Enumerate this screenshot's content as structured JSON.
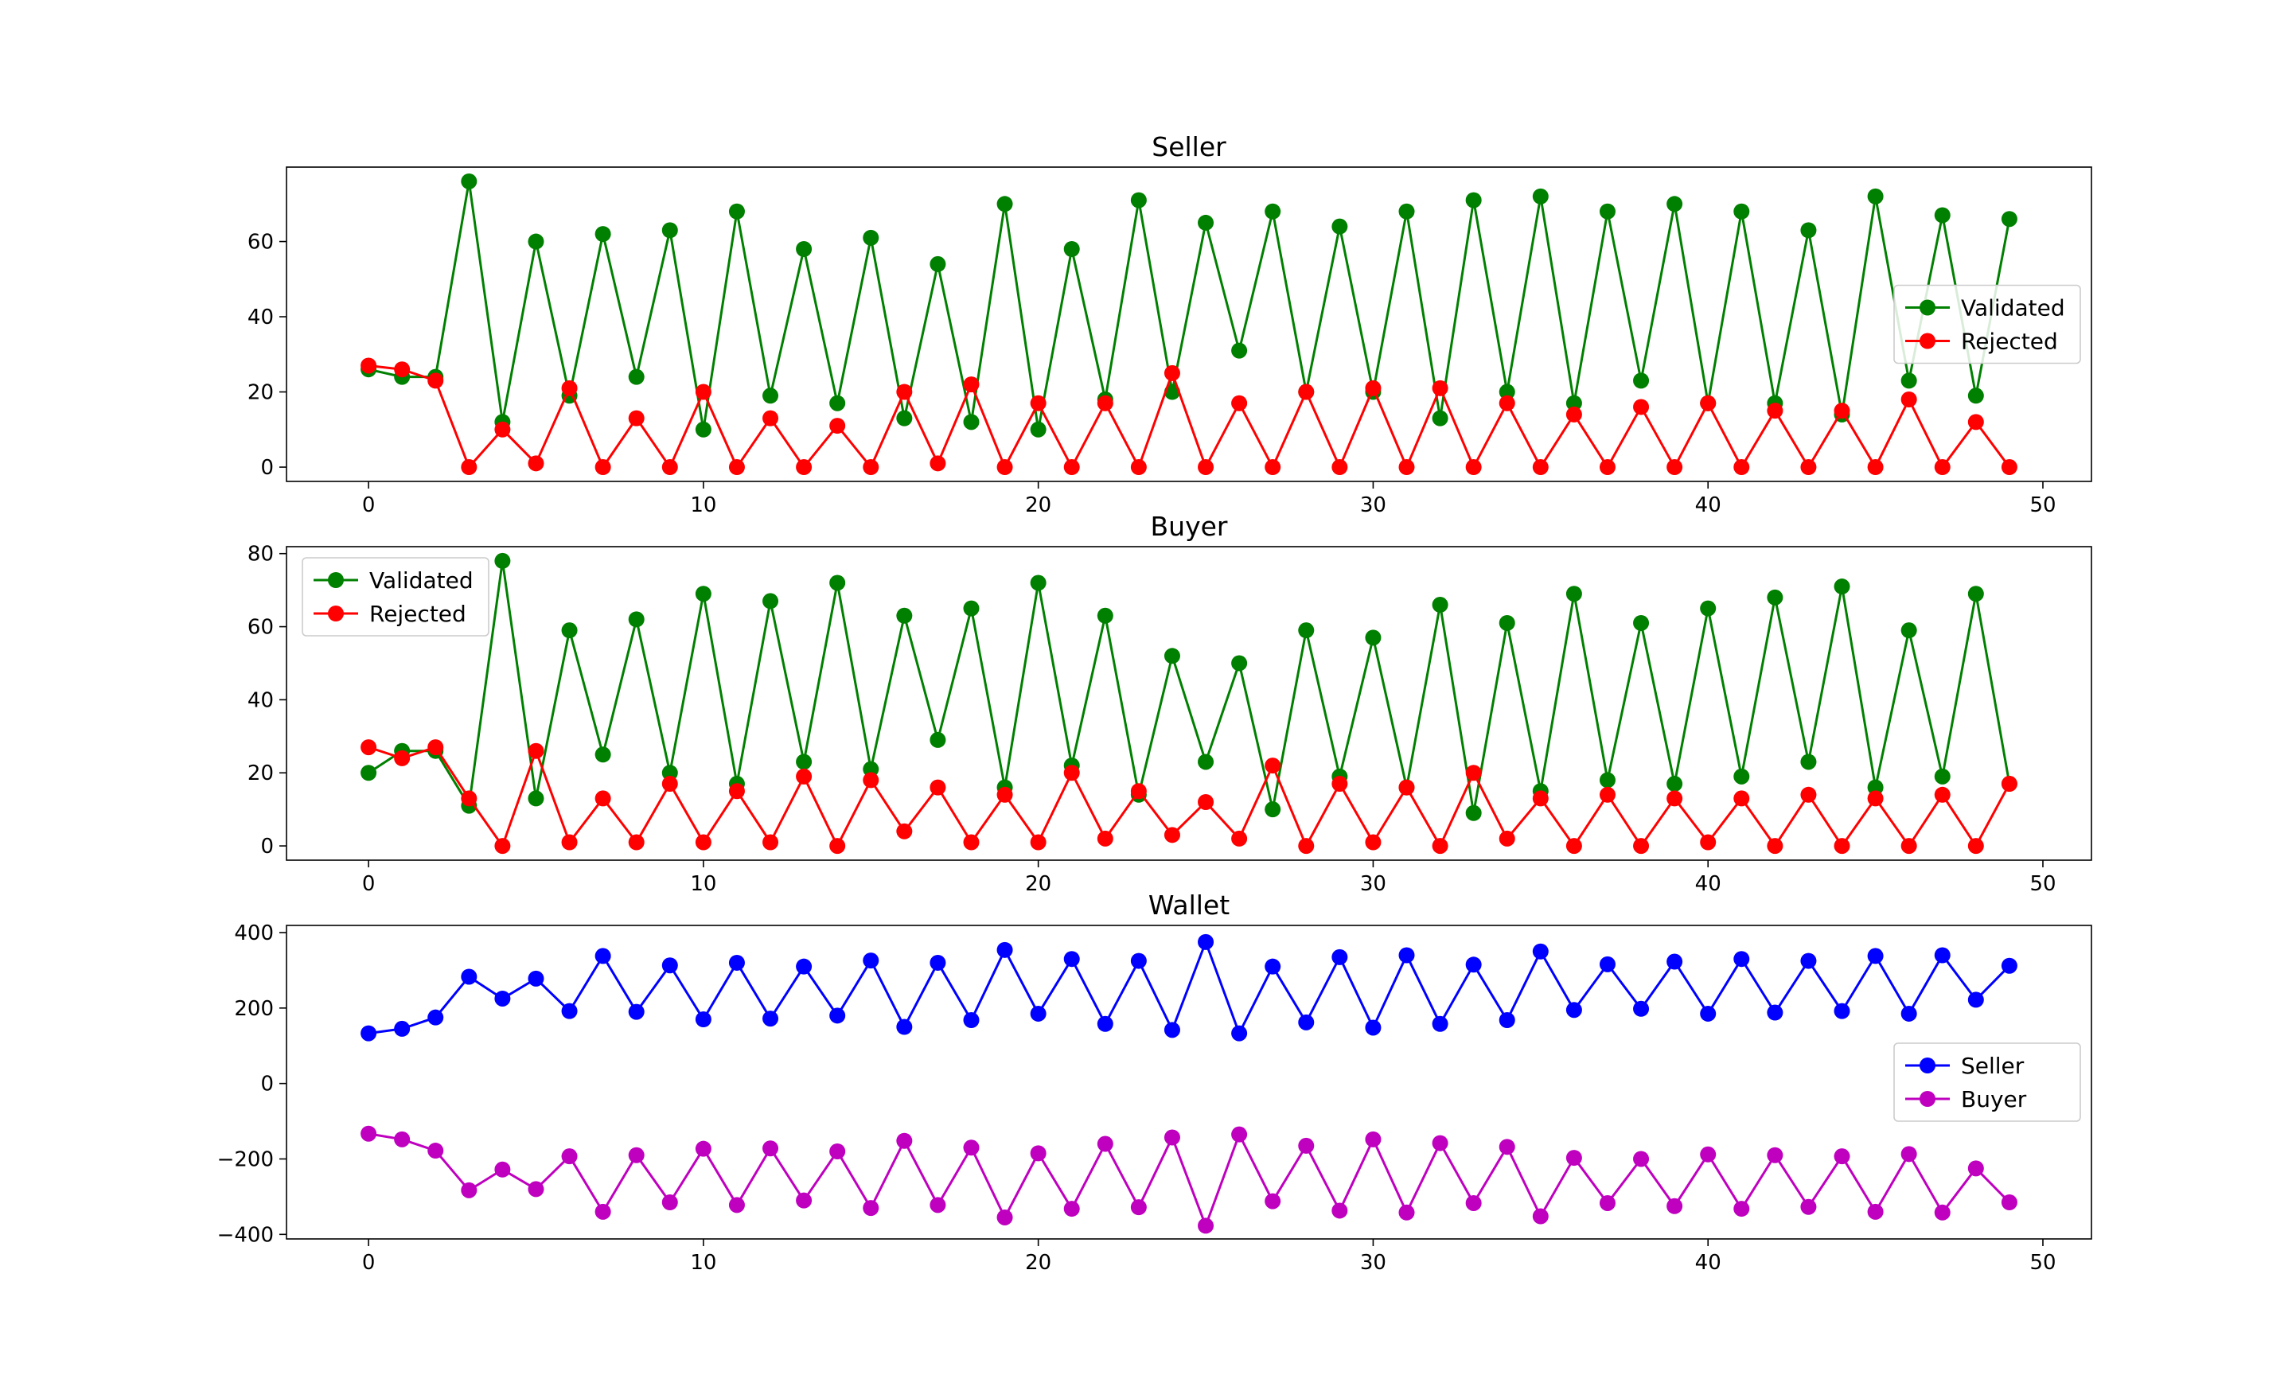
{
  "chart_data": [
    {
      "type": "line",
      "title": "Seller",
      "xlabel": "",
      "ylabel": "",
      "xlim": [
        -2.45,
        51.45
      ],
      "ylim": [
        -3.8,
        79.8
      ],
      "xticks": [
        0,
        10,
        20,
        30,
        40,
        50
      ],
      "yticks": [
        0,
        20,
        40,
        60
      ],
      "xtick_labels": [
        "0",
        "10",
        "20",
        "30",
        "40",
        "50"
      ],
      "ytick_labels": [
        "0",
        "20",
        "40",
        "60"
      ],
      "legend_position": "center-right",
      "grid": false,
      "x": [
        0,
        1,
        2,
        3,
        4,
        5,
        6,
        7,
        8,
        9,
        10,
        11,
        12,
        13,
        14,
        15,
        16,
        17,
        18,
        19,
        20,
        21,
        22,
        23,
        24,
        25,
        26,
        27,
        28,
        29,
        30,
        31,
        32,
        33,
        34,
        35,
        36,
        37,
        38,
        39,
        40,
        41,
        42,
        43,
        44,
        45,
        46,
        47,
        48,
        49
      ],
      "series": [
        {
          "name": "Validated",
          "color": "#008000",
          "values": [
            26,
            24,
            24,
            76,
            12,
            60,
            19,
            62,
            24,
            63,
            10,
            68,
            19,
            58,
            17,
            61,
            13,
            54,
            12,
            70,
            10,
            58,
            18,
            71,
            20,
            65,
            31,
            68,
            20,
            64,
            20,
            68,
            13,
            71,
            20,
            72,
            17,
            68,
            23,
            70,
            17,
            68,
            17,
            63,
            14,
            72,
            23,
            67,
            19,
            66
          ]
        },
        {
          "name": "Rejected",
          "color": "#ff0000",
          "values": [
            27,
            26,
            23,
            0,
            10,
            1,
            21,
            0,
            13,
            0,
            20,
            0,
            13,
            0,
            11,
            0,
            20,
            1,
            22,
            0,
            17,
            0,
            17,
            0,
            25,
            0,
            17,
            0,
            20,
            0,
            21,
            0,
            21,
            0,
            17,
            0,
            14,
            0,
            16,
            0,
            17,
            0,
            15,
            0,
            15,
            0,
            18,
            0,
            12,
            0
          ]
        }
      ]
    },
    {
      "type": "line",
      "title": "Buyer",
      "xlabel": "",
      "ylabel": "",
      "xlim": [
        -2.45,
        51.45
      ],
      "ylim": [
        -3.9,
        81.9
      ],
      "xticks": [
        0,
        10,
        20,
        30,
        40,
        50
      ],
      "yticks": [
        0,
        20,
        40,
        60,
        80
      ],
      "xtick_labels": [
        "0",
        "10",
        "20",
        "30",
        "40",
        "50"
      ],
      "ytick_labels": [
        "0",
        "20",
        "40",
        "60",
        "80"
      ],
      "legend_position": "upper-left",
      "grid": false,
      "x": [
        0,
        1,
        2,
        3,
        4,
        5,
        6,
        7,
        8,
        9,
        10,
        11,
        12,
        13,
        14,
        15,
        16,
        17,
        18,
        19,
        20,
        21,
        22,
        23,
        24,
        25,
        26,
        27,
        28,
        29,
        30,
        31,
        32,
        33,
        34,
        35,
        36,
        37,
        38,
        39,
        40,
        41,
        42,
        43,
        44,
        45,
        46,
        47,
        48,
        49
      ],
      "series": [
        {
          "name": "Validated",
          "color": "#008000",
          "values": [
            20,
            26,
            26,
            11,
            78,
            13,
            59,
            25,
            62,
            20,
            69,
            17,
            67,
            23,
            72,
            21,
            63,
            29,
            65,
            16,
            72,
            22,
            63,
            14,
            52,
            23,
            50,
            10,
            59,
            19,
            57,
            16,
            66,
            9,
            61,
            15,
            69,
            18,
            61,
            17,
            65,
            19,
            68,
            23,
            71,
            16,
            59,
            19,
            69,
            17
          ]
        },
        {
          "name": "Rejected",
          "color": "#ff0000",
          "values": [
            27,
            24,
            27,
            13,
            0,
            26,
            1,
            13,
            1,
            17,
            1,
            15,
            1,
            19,
            0,
            18,
            4,
            16,
            1,
            14,
            1,
            20,
            2,
            15,
            3,
            12,
            2,
            22,
            0,
            17,
            1,
            16,
            0,
            20,
            2,
            13,
            0,
            14,
            0,
            13,
            1,
            13,
            0,
            14,
            0,
            13,
            0,
            14,
            0,
            17
          ]
        }
      ]
    },
    {
      "type": "line",
      "title": "Wallet",
      "xlabel": "",
      "ylabel": "",
      "xlim": [
        -2.45,
        51.45
      ],
      "ylim": [
        -412,
        419
      ],
      "xticks": [
        0,
        10,
        20,
        30,
        40,
        50
      ],
      "yticks": [
        -400,
        -200,
        0,
        200,
        400
      ],
      "xtick_labels": [
        "0",
        "10",
        "20",
        "30",
        "40",
        "50"
      ],
      "ytick_labels": [
        "−400",
        "−200",
        "0",
        "200",
        "400"
      ],
      "legend_position": "center-right",
      "grid": false,
      "x": [
        0,
        1,
        2,
        3,
        4,
        5,
        6,
        7,
        8,
        9,
        10,
        11,
        12,
        13,
        14,
        15,
        16,
        17,
        18,
        19,
        20,
        21,
        22,
        23,
        24,
        25,
        26,
        27,
        28,
        29,
        30,
        31,
        32,
        33,
        34,
        35,
        36,
        37,
        38,
        39,
        40,
        41,
        42,
        43,
        44,
        45,
        46,
        47,
        48,
        49
      ],
      "series": [
        {
          "name": "Seller",
          "color": "#0000ff",
          "values": [
            133,
            145,
            175,
            283,
            225,
            278,
            192,
            338,
            190,
            313,
            170,
            320,
            172,
            310,
            180,
            326,
            150,
            320,
            168,
            354,
            185,
            330,
            158,
            325,
            142,
            375,
            133,
            310,
            162,
            335,
            148,
            340,
            158,
            315,
            168,
            350,
            195,
            316,
            198,
            323,
            185,
            330,
            188,
            325,
            192,
            338,
            185,
            340,
            222,
            312
          ]
        },
        {
          "name": "Buyer",
          "color": "#bf00bf",
          "values": [
            -133,
            -148,
            -178,
            -283,
            -228,
            -280,
            -193,
            -340,
            -190,
            -315,
            -173,
            -322,
            -172,
            -310,
            -180,
            -330,
            -152,
            -322,
            -170,
            -355,
            -185,
            -332,
            -160,
            -328,
            -143,
            -377,
            -135,
            -312,
            -165,
            -337,
            -148,
            -342,
            -158,
            -317,
            -168,
            -352,
            -197,
            -317,
            -200,
            -325,
            -188,
            -332,
            -190,
            -327,
            -193,
            -340,
            -187,
            -342,
            -225,
            -315
          ]
        }
      ]
    }
  ]
}
